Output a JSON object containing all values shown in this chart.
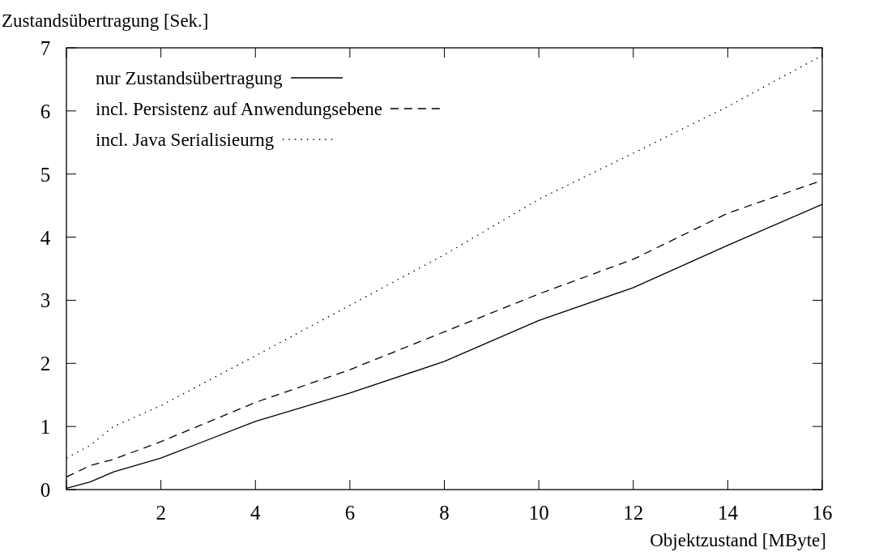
{
  "chart_data": {
    "type": "line",
    "xlabel": "Objektzustand [MByte]",
    "ylabel": "Zustandsübertragung [Sek.]",
    "x": [
      0,
      0.5,
      1,
      2,
      4,
      6,
      8,
      10,
      12,
      14,
      16
    ],
    "series": [
      {
        "name": "nur Zustandsübertragung",
        "color": "#000000",
        "line_style": "solid",
        "values": [
          0.02,
          0.12,
          0.28,
          0.5,
          1.08,
          1.53,
          2.03,
          2.68,
          3.2,
          3.87,
          4.52
        ]
      },
      {
        "name": "incl. Persistenz auf Anwendungsebene",
        "color": "#000000",
        "line_style": "dashed",
        "values": [
          0.2,
          0.38,
          0.48,
          0.76,
          1.38,
          1.9,
          2.5,
          3.1,
          3.65,
          4.38,
          4.9
        ]
      },
      {
        "name": "incl. Java Serialisieurng",
        "color": "#000000",
        "line_style": "dotted",
        "values": [
          0.5,
          0.7,
          1.0,
          1.33,
          2.12,
          2.92,
          3.72,
          4.6,
          5.33,
          6.07,
          6.88
        ]
      }
    ],
    "xlim": [
      0,
      16
    ],
    "xticks": [
      {
        "value": 0,
        "label": null
      },
      2,
      4,
      6,
      8,
      10,
      12,
      14,
      16
    ],
    "ylim": [
      0,
      7
    ],
    "yticks": [
      0,
      1,
      2,
      3,
      4,
      5,
      6,
      7
    ],
    "grid": false,
    "legend": "top left"
  }
}
